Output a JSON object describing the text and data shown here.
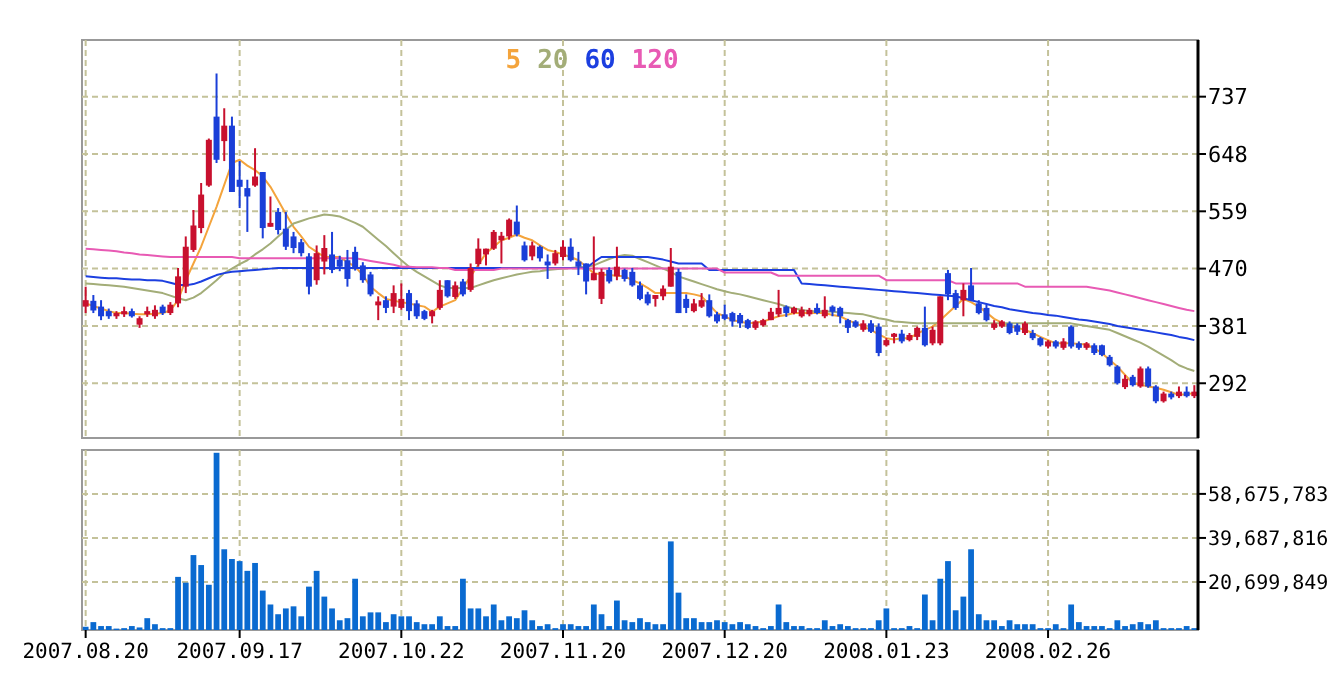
{
  "chart_data": [
    {
      "type": "candlestick",
      "legend": "top",
      "grid": true,
      "tick_labels": "y",
      "categories": [
        "2007.08.20",
        null,
        null,
        null,
        null,
        null,
        null,
        null,
        null,
        null,
        null,
        null,
        null,
        null,
        null,
        null,
        null,
        null,
        null,
        null,
        "2007.09.17",
        null,
        null,
        null,
        null,
        null,
        null,
        null,
        null,
        null,
        null,
        null,
        null,
        null,
        null,
        null,
        null,
        null,
        null,
        null,
        null,
        "2007.10.22",
        null,
        null,
        null,
        null,
        null,
        null,
        null,
        null,
        null,
        null,
        null,
        null,
        null,
        null,
        null,
        null,
        null,
        null,
        null,
        null,
        "2007.11.20",
        null,
        null,
        null,
        null,
        null,
        null,
        null,
        null,
        null,
        null,
        null,
        null,
        null,
        null,
        null,
        null,
        null,
        null,
        null,
        null,
        "2007.12.20",
        null,
        null,
        null,
        null,
        null,
        null,
        null,
        null,
        null,
        null,
        null,
        null,
        null,
        null,
        null,
        null,
        null,
        null,
        null,
        null,
        "2008.01.23",
        null,
        null,
        null,
        null,
        null,
        null,
        null,
        null,
        null,
        null,
        null,
        null,
        null,
        null,
        null,
        null,
        null,
        null,
        null,
        null,
        "2008.02.26",
        null,
        null,
        null,
        null,
        null,
        null,
        null,
        null,
        null,
        null,
        null,
        null,
        null,
        null,
        null,
        null,
        null,
        null,
        null
      ],
      "ylim": [
        207,
        825
      ],
      "yticks": [
        292,
        381,
        470,
        559,
        648,
        737
      ],
      "ohlc": [
        [
          411,
          442,
          401,
          421
        ],
        [
          420,
          429,
          401,
          405
        ],
        [
          411,
          421,
          390,
          396
        ],
        [
          404,
          408,
          392,
          396
        ],
        [
          396,
          404,
          392,
          401
        ],
        [
          399,
          411,
          395,
          404
        ],
        [
          404,
          408,
          394,
          396
        ],
        [
          383,
          396,
          378,
          393
        ],
        [
          399,
          411,
          395,
          404
        ],
        [
          396,
          413,
          392,
          406
        ],
        [
          411,
          414,
          398,
          401
        ],
        [
          401,
          418,
          398,
          414
        ],
        [
          416,
          471,
          410,
          458
        ],
        [
          442,
          520,
          432,
          504
        ],
        [
          499,
          561,
          496,
          537
        ],
        [
          533,
          603,
          525,
          585
        ],
        [
          599,
          672,
          597,
          670
        ],
        [
          706,
          773,
          634,
          639
        ],
        [
          668,
          719,
          637,
          692
        ],
        [
          692,
          706,
          589,
          589
        ],
        [
          608,
          637,
          564,
          597
        ],
        [
          595,
          608,
          527,
          582
        ],
        [
          599,
          657,
          597,
          613
        ],
        [
          620,
          620,
          517,
          533
        ],
        [
          535,
          582,
          535,
          541
        ],
        [
          558,
          564,
          523,
          530
        ],
        [
          532,
          558,
          499,
          504
        ],
        [
          520,
          527,
          494,
          502
        ],
        [
          511,
          516,
          489,
          494
        ],
        [
          489,
          494,
          430,
          442
        ],
        [
          452,
          506,
          445,
          494
        ],
        [
          481,
          522,
          461,
          502
        ],
        [
          492,
          527,
          463,
          468
        ],
        [
          484,
          490,
          466,
          473
        ],
        [
          483,
          499,
          442,
          454
        ],
        [
          496,
          504,
          467,
          471
        ],
        [
          475,
          480,
          448,
          452
        ],
        [
          461,
          465,
          427,
          430
        ],
        [
          413,
          427,
          390,
          419
        ],
        [
          421,
          427,
          401,
          409
        ],
        [
          411,
          444,
          401,
          432
        ],
        [
          409,
          447,
          406,
          423
        ],
        [
          432,
          437,
          390,
          404
        ],
        [
          416,
          421,
          392,
          396
        ],
        [
          404,
          406,
          390,
          392
        ],
        [
          396,
          406,
          385,
          404
        ],
        [
          409,
          452,
          406,
          437
        ],
        [
          452,
          452,
          425,
          427
        ],
        [
          426,
          450,
          423,
          444
        ],
        [
          450,
          454,
          427,
          430
        ],
        [
          437,
          478,
          434,
          471
        ],
        [
          477,
          517,
          473,
          501
        ],
        [
          492,
          501,
          475,
          501
        ],
        [
          501,
          530,
          499,
          527
        ],
        [
          514,
          527,
          478,
          521
        ],
        [
          520,
          548,
          515,
          546
        ],
        [
          543,
          568,
          520,
          523
        ],
        [
          506,
          512,
          481,
          483
        ],
        [
          489,
          512,
          483,
          506
        ],
        [
          504,
          506,
          481,
          486
        ],
        [
          481,
          492,
          454,
          475
        ],
        [
          478,
          499,
          475,
          494
        ],
        [
          488,
          514,
          483,
          504
        ],
        [
          504,
          517,
          481,
          483
        ],
        [
          481,
          496,
          460,
          473
        ],
        [
          478,
          478,
          430,
          450
        ],
        [
          452,
          520,
          452,
          463
        ],
        [
          423,
          470,
          415,
          465
        ],
        [
          468,
          472,
          447,
          450
        ],
        [
          458,
          504,
          452,
          473
        ],
        [
          468,
          470,
          450,
          454
        ],
        [
          465,
          471,
          442,
          444
        ],
        [
          444,
          450,
          421,
          423
        ],
        [
          430,
          434,
          413,
          416
        ],
        [
          423,
          429,
          411,
          429
        ],
        [
          427,
          444,
          421,
          439
        ],
        [
          442,
          502,
          442,
          473
        ],
        [
          465,
          470,
          401,
          401
        ],
        [
          423,
          430,
          401,
          409
        ],
        [
          404,
          423,
          402,
          416
        ],
        [
          411,
          432,
          409,
          421
        ],
        [
          421,
          430,
          394,
          396
        ],
        [
          399,
          403,
          385,
          388
        ],
        [
          399,
          414,
          390,
          392
        ],
        [
          401,
          403,
          380,
          388
        ],
        [
          398,
          401,
          378,
          385
        ],
        [
          390,
          392,
          376,
          378
        ],
        [
          378,
          390,
          375,
          388
        ],
        [
          382,
          392,
          380,
          390
        ],
        [
          390,
          409,
          390,
          403
        ],
        [
          399,
          437,
          395,
          409
        ],
        [
          411,
          413,
          395,
          401
        ],
        [
          401,
          411,
          399,
          409
        ],
        [
          396,
          411,
          394,
          406
        ],
        [
          399,
          409,
          396,
          406
        ],
        [
          409,
          416,
          399,
          401
        ],
        [
          396,
          427,
          393,
          406
        ],
        [
          411,
          413,
          396,
          403
        ],
        [
          409,
          411,
          385,
          396
        ],
        [
          390,
          392,
          370,
          378
        ],
        [
          388,
          390,
          378,
          380
        ],
        [
          375,
          390,
          372,
          385
        ],
        [
          385,
          390,
          370,
          372
        ],
        [
          380,
          385,
          334,
          339
        ],
        [
          351,
          362,
          349,
          359
        ],
        [
          364,
          370,
          354,
          369
        ],
        [
          369,
          375,
          354,
          357
        ],
        [
          359,
          370,
          357,
          367
        ],
        [
          364,
          380,
          359,
          378
        ],
        [
          378,
          411,
          349,
          351
        ],
        [
          354,
          380,
          351,
          375
        ],
        [
          354,
          427,
          351,
          427
        ],
        [
          463,
          468,
          421,
          430
        ],
        [
          432,
          437,
          406,
          409
        ],
        [
          421,
          447,
          396,
          437
        ],
        [
          444,
          471,
          421,
          421
        ],
        [
          416,
          421,
          399,
          401
        ],
        [
          409,
          414,
          388,
          390
        ],
        [
          378,
          390,
          375,
          385
        ],
        [
          380,
          390,
          378,
          388
        ],
        [
          385,
          388,
          368,
          370
        ],
        [
          382,
          385,
          367,
          372
        ],
        [
          370,
          388,
          367,
          385
        ],
        [
          370,
          375,
          359,
          362
        ],
        [
          362,
          364,
          349,
          351
        ],
        [
          349,
          359,
          346,
          357
        ],
        [
          357,
          359,
          346,
          349
        ],
        [
          347,
          362,
          344,
          357
        ],
        [
          380,
          382,
          346,
          349
        ],
        [
          354,
          357,
          344,
          347
        ],
        [
          347,
          356,
          344,
          354
        ],
        [
          351,
          354,
          336,
          339
        ],
        [
          351,
          352,
          334,
          336
        ],
        [
          333,
          336,
          318,
          320
        ],
        [
          318,
          320,
          290,
          292
        ],
        [
          286,
          305,
          283,
          299
        ],
        [
          302,
          305,
          287,
          289
        ],
        [
          287,
          318,
          285,
          315
        ],
        [
          315,
          318,
          285,
          287
        ],
        [
          287,
          289,
          261,
          264
        ],
        [
          264,
          279,
          262,
          276
        ],
        [
          276,
          279,
          267,
          270
        ],
        [
          272,
          287,
          269,
          279
        ],
        [
          279,
          287,
          270,
          272
        ],
        [
          272,
          289,
          269,
          279
        ]
      ],
      "series": [
        {
          "name": "5",
          "type": "line",
          "color": "#f4a43c",
          "values": [
            416,
            412,
            408,
            404,
            401,
            401,
            400,
            399,
            399,
            400,
            401,
            405,
            421,
            452,
            478,
            504,
            535,
            566,
            600,
            634,
            639,
            630,
            623,
            613,
            597,
            576,
            555,
            535,
            520,
            504,
            496,
            488,
            488,
            488,
            480,
            473,
            460,
            442,
            432,
            423,
            420,
            418,
            416,
            413,
            411,
            403,
            411,
            416,
            421,
            440,
            458,
            476,
            494,
            504,
            514,
            518,
            523,
            518,
            514,
            506,
            499,
            496,
            492,
            488,
            483,
            473,
            463,
            461,
            460,
            459,
            458,
            452,
            447,
            440,
            432,
            432,
            432,
            432,
            432,
            430,
            427,
            414,
            401,
            396,
            390,
            388,
            385,
            386,
            388,
            392,
            396,
            398,
            401,
            401,
            401,
            401,
            401,
            398,
            396,
            390,
            385,
            380,
            375,
            368,
            362,
            360,
            362,
            362,
            369,
            375,
            380,
            390,
            401,
            412,
            423,
            418,
            411,
            402,
            392,
            386,
            380,
            378,
            375,
            370,
            364,
            359,
            354,
            354,
            354,
            353,
            352,
            346,
            339,
            328,
            318,
            305,
            292,
            290,
            287,
            285,
            282,
            278,
            274,
            275,
            277
          ]
        },
        {
          "name": "20",
          "type": "line",
          "color": "#a3ad78",
          "values": [
            447,
            446,
            445,
            444,
            443,
            442,
            440,
            438,
            436,
            434,
            432,
            428,
            424,
            421,
            425,
            432,
            442,
            452,
            463,
            470,
            477,
            483,
            492,
            500,
            509,
            520,
            530,
            540,
            544,
            548,
            551,
            554,
            553,
            551,
            546,
            541,
            535,
            525,
            515,
            505,
            494,
            483,
            473,
            465,
            458,
            451,
            444,
            440,
            440,
            440,
            440,
            444,
            448,
            452,
            455,
            458,
            461,
            463,
            465,
            466,
            468,
            469,
            470,
            471,
            472,
            473,
            475,
            480,
            485,
            489,
            491,
            490,
            485,
            480,
            475,
            470,
            465,
            458,
            454,
            450,
            446,
            442,
            438,
            435,
            432,
            430,
            427,
            424,
            421,
            418,
            415,
            411,
            408,
            406,
            404,
            404,
            404,
            403,
            402,
            401,
            400,
            399,
            396,
            393,
            391,
            388,
            387,
            386,
            385,
            385,
            385,
            385,
            385,
            385,
            385,
            385,
            385,
            385,
            385,
            385,
            385,
            385,
            385,
            385,
            385,
            385,
            385,
            385,
            385,
            383,
            381,
            379,
            377,
            375,
            370,
            365,
            360,
            355,
            349,
            342,
            335,
            328,
            320,
            315,
            311
          ]
        },
        {
          "name": "60",
          "type": "line",
          "color": "#1c3fe0",
          "values": [
            458,
            457,
            456,
            455,
            455,
            454,
            453,
            453,
            452,
            452,
            451,
            448,
            445,
            444,
            446,
            450,
            455,
            460,
            463,
            465,
            466,
            467,
            468,
            469,
            470,
            471,
            471,
            471,
            471,
            471,
            471,
            471,
            471,
            471,
            471,
            471,
            471,
            471,
            471,
            471,
            471,
            471,
            471,
            471,
            471,
            471,
            471,
            471,
            471,
            471,
            471,
            471,
            471,
            471,
            471,
            471,
            471,
            471,
            471,
            471,
            471,
            471,
            471,
            471,
            471,
            471,
            480,
            488,
            488,
            488,
            488,
            488,
            488,
            488,
            486,
            484,
            481,
            478,
            478,
            478,
            478,
            468,
            468,
            468,
            468,
            468,
            468,
            468,
            468,
            468,
            468,
            468,
            468,
            447,
            446,
            445,
            444,
            443,
            442,
            441,
            440,
            439,
            438,
            437,
            436,
            435,
            434,
            433,
            432,
            431,
            430,
            429,
            428,
            427,
            424,
            421,
            418,
            415,
            412,
            410,
            407,
            405,
            403,
            401,
            400,
            398,
            397,
            395,
            393,
            391,
            390,
            388,
            386,
            384,
            381,
            379,
            377,
            375,
            373,
            371,
            369,
            367,
            364,
            362,
            359
          ]
        },
        {
          "name": "120",
          "type": "line",
          "color": "#e85ab4",
          "values": [
            501,
            500,
            499,
            498,
            497,
            495,
            494,
            492,
            491,
            490,
            489,
            488,
            488,
            488,
            488,
            488,
            488,
            488,
            488,
            488,
            486,
            486,
            486,
            486,
            486,
            486,
            486,
            486,
            486,
            486,
            486,
            486,
            486,
            486,
            486,
            486,
            484,
            482,
            480,
            478,
            476,
            473,
            473,
            472,
            472,
            472,
            471,
            471,
            468,
            468,
            468,
            468,
            468,
            468,
            470,
            470,
            470,
            470,
            470,
            470,
            470,
            470,
            470,
            470,
            470,
            470,
            470,
            470,
            470,
            470,
            470,
            470,
            470,
            470,
            470,
            470,
            470,
            470,
            470,
            470,
            470,
            470,
            470,
            464,
            464,
            464,
            464,
            464,
            464,
            464,
            459,
            459,
            459,
            459,
            459,
            459,
            459,
            459,
            459,
            459,
            459,
            459,
            459,
            459,
            452,
            452,
            452,
            452,
            452,
            452,
            452,
            452,
            452,
            447,
            447,
            447,
            447,
            447,
            447,
            447,
            447,
            447,
            442,
            442,
            442,
            442,
            442,
            442,
            442,
            442,
            442,
            440,
            438,
            436,
            433,
            430,
            427,
            424,
            421,
            418,
            415,
            412,
            409,
            406,
            404
          ]
        }
      ]
    },
    {
      "type": "bar",
      "grid": true,
      "color": "#0a6ad0",
      "categories": [
        "2007.08.20",
        null,
        null,
        null,
        null,
        null,
        null,
        null,
        null,
        null,
        null,
        null,
        null,
        null,
        null,
        null,
        null,
        null,
        null,
        null,
        "2007.09.17",
        null,
        null,
        null,
        null,
        null,
        null,
        null,
        null,
        null,
        null,
        null,
        null,
        null,
        null,
        null,
        null,
        null,
        null,
        null,
        null,
        "2007.10.22",
        null,
        null,
        null,
        null,
        null,
        null,
        null,
        null,
        null,
        null,
        null,
        null,
        null,
        null,
        null,
        null,
        null,
        null,
        null,
        null,
        "2007.11.20",
        null,
        null,
        null,
        null,
        null,
        null,
        null,
        null,
        null,
        null,
        null,
        null,
        null,
        null,
        null,
        null,
        null,
        null,
        null,
        null,
        "2007.12.20",
        null,
        null,
        null,
        null,
        null,
        null,
        null,
        null,
        null,
        null,
        null,
        null,
        null,
        null,
        null,
        null,
        null,
        null,
        null,
        null,
        "2008.01.23",
        null,
        null,
        null,
        null,
        null,
        null,
        null,
        null,
        null,
        null,
        null,
        null,
        null,
        null,
        null,
        null,
        null,
        null,
        null,
        null,
        "2008.02.26",
        null,
        null,
        null,
        null,
        null,
        null,
        null,
        null,
        null,
        null,
        null,
        null,
        null,
        null,
        null,
        null,
        null,
        null,
        null
      ],
      "ylim": [
        0,
        77600000
      ],
      "yticks": [
        {
          "value": 20699849,
          "label": "20,699,849"
        },
        {
          "value": 39687816,
          "label": "39,687,816"
        },
        {
          "value": 58675783,
          "label": "58,675,783"
        }
      ],
      "values": [
        1400000,
        3400000,
        1700000,
        1700000,
        600000,
        800000,
        1700000,
        1100000,
        5100000,
        2500000,
        800000,
        800000,
        22900000,
        20400000,
        32300000,
        28000000,
        19500000,
        76400000,
        34800000,
        30600000,
        29700000,
        25500000,
        28900000,
        17000000,
        11000000,
        6800000,
        9300000,
        10200000,
        5900000,
        18700000,
        25500000,
        14400000,
        9300000,
        4200000,
        5100000,
        22100000,
        5900000,
        7600000,
        7600000,
        3400000,
        6800000,
        5900000,
        5900000,
        3400000,
        2500000,
        2500000,
        5900000,
        1700000,
        1700000,
        22100000,
        9300000,
        9300000,
        5900000,
        11000000,
        4200000,
        5900000,
        5100000,
        8500000,
        4200000,
        1700000,
        2500000,
        800000,
        2500000,
        2500000,
        1700000,
        1700000,
        11000000,
        6800000,
        1700000,
        12700000,
        4200000,
        3400000,
        5100000,
        3400000,
        2500000,
        2500000,
        38200000,
        16100000,
        5100000,
        5100000,
        3400000,
        3400000,
        4200000,
        3400000,
        2500000,
        3400000,
        2500000,
        1700000,
        800000,
        1700000,
        11000000,
        3400000,
        1700000,
        1700000,
        800000,
        800000,
        4200000,
        1700000,
        2500000,
        1700000,
        800000,
        800000,
        800000,
        4200000,
        9300000,
        800000,
        800000,
        1700000,
        800000,
        15300000,
        4200000,
        22100000,
        29700000,
        8500000,
        14400000,
        34800000,
        6800000,
        4200000,
        4200000,
        1700000,
        4200000,
        2500000,
        2500000,
        2500000,
        800000,
        800000,
        2500000,
        800000,
        11000000,
        3400000,
        1700000,
        1700000,
        1700000,
        800000,
        4200000,
        1700000,
        2500000,
        3400000,
        2500000,
        4200000,
        800000,
        800000,
        800000,
        1700000,
        800000
      ]
    }
  ]
}
